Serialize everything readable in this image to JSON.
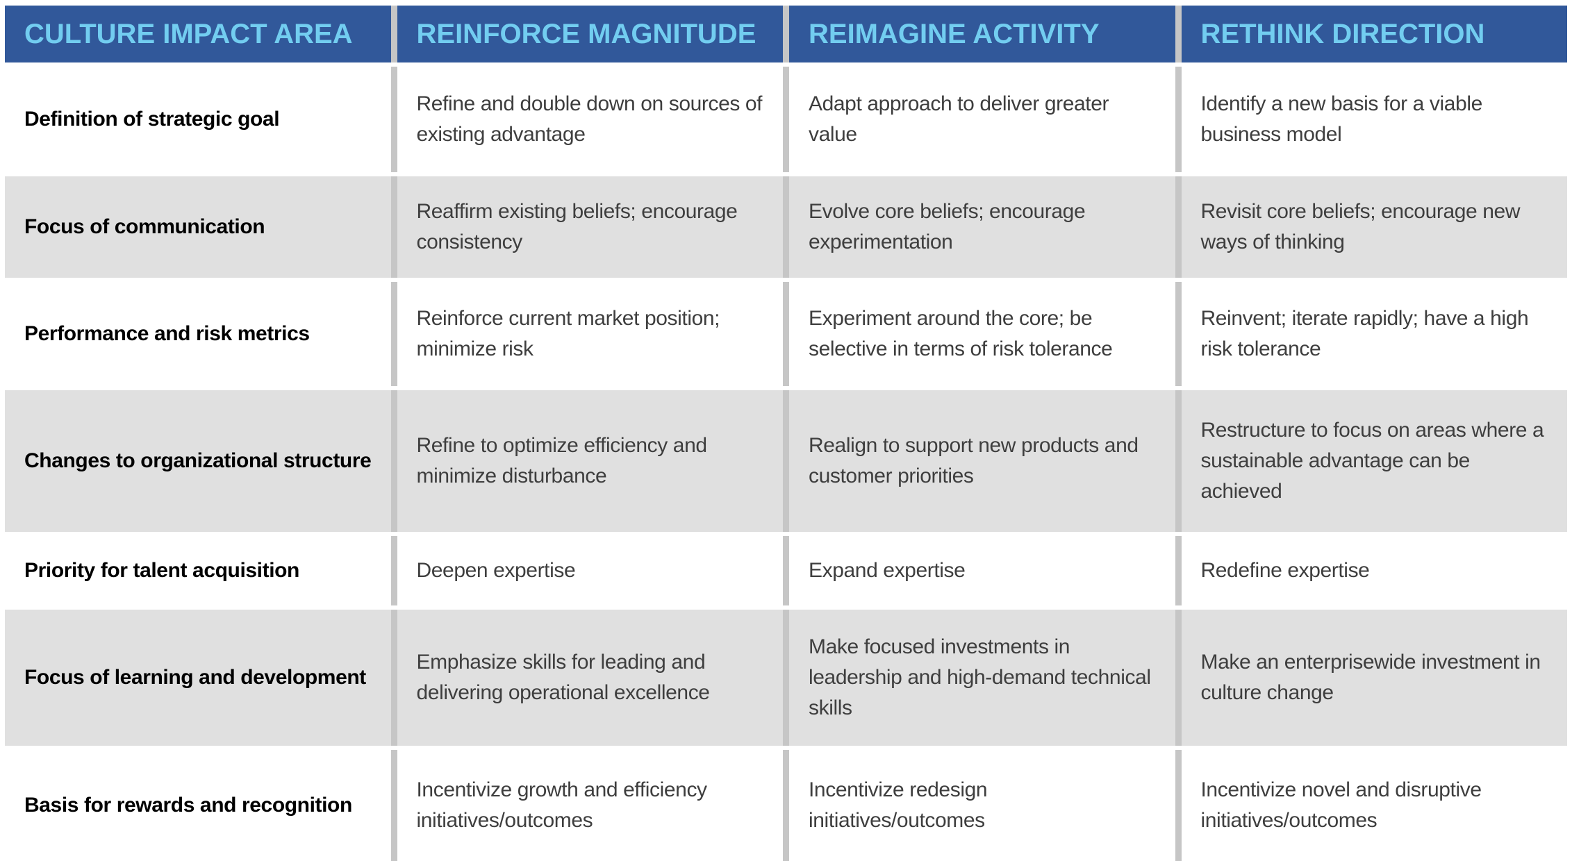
{
  "table": {
    "columns": [
      "CULTURE IMPACT AREA",
      "REINFORCE MAGNITUDE",
      "REIMAGINE ACTIVITY",
      "RETHINK DIRECTION"
    ],
    "rows": [
      [
        "Definition of strategic goal",
        "Refine and double down on sources of existing advantage",
        "Adapt approach to deliver greater value",
        "Identify a new basis for a viable business model"
      ],
      [
        "Focus of communication",
        "Reaffirm existing beliefs; encourage consistency",
        "Evolve core beliefs; encourage experimentation",
        "Revisit core beliefs; encourage new ways of thinking"
      ],
      [
        "Performance and risk metrics",
        "Reinforce current market position; minimize risk",
        "Experiment around the core; be selective in terms of risk tolerance",
        "Reinvent; iterate rapidly; have a high risk tolerance"
      ],
      [
        "Changes to organizational structure",
        "Refine to optimize efficiency and minimize disturbance",
        "Realign to support new products and customer priorities",
        "Restructure to focus on areas where a sustainable advantage can be achieved"
      ],
      [
        "Priority for talent acquisition",
        "Deepen expertise",
        "Expand expertise",
        "Redefine expertise"
      ],
      [
        "Focus of learning and development",
        "Emphasize skills for leading and delivering operational excellence",
        "Make focused investments in leadership and high-demand technical skills",
        "Make an enterprisewide investment in culture change"
      ],
      [
        "Basis for rewards and recognition",
        "Incentivize growth and efficiency initiatives/outcomes",
        "Incentivize redesign initiatives/outcomes",
        "Incentivize novel and disruptive initiatives/outcomes"
      ]
    ]
  },
  "colors": {
    "header_background": "#31589a",
    "header_text": "#72cdf0",
    "row_alt_background": "#e0e0e0",
    "row_background": "#ffffff",
    "divider": "#c6c6c6",
    "body_text": "#3e3e3e",
    "area_text": "#000000"
  }
}
